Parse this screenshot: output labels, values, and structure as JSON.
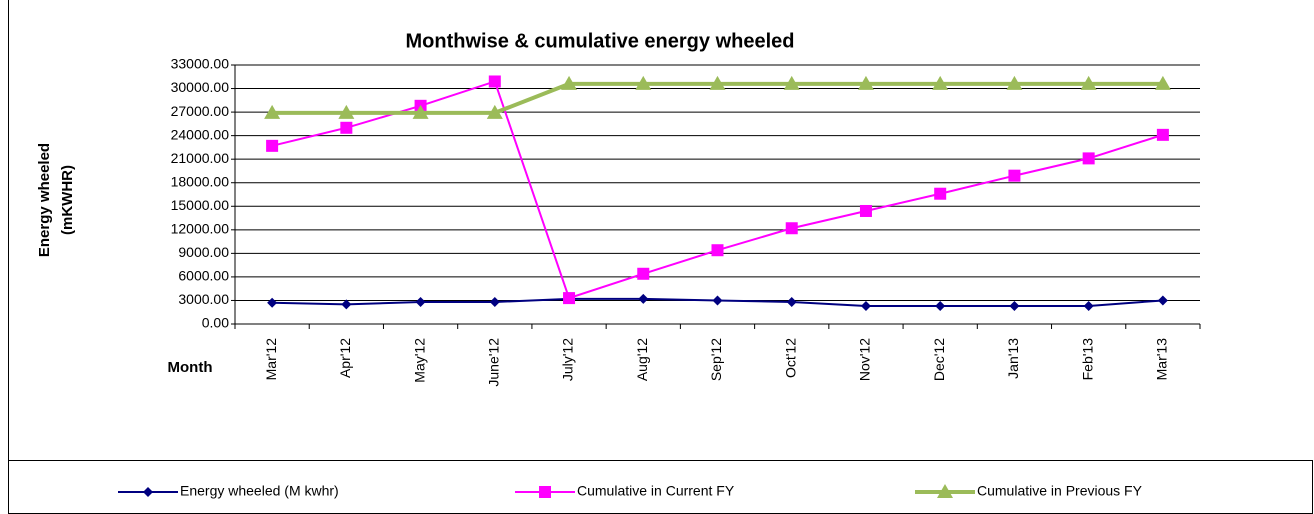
{
  "chart_data": {
    "type": "line",
    "title": "Monthwise & cumulative energy wheeled",
    "y_label": [
      "Energy wheeled",
      "(mKWHR)"
    ],
    "x_label": "Month",
    "categories": [
      "Mar'12",
      "Apr'12",
      "May'12",
      "June'12",
      "July'12",
      "Aug'12",
      "Sep'12",
      "Oct'12",
      "Nov'12",
      "Dec'12",
      "Jan'13",
      "Feb'13",
      "Mar'13"
    ],
    "series": [
      {
        "name": "Energy wheeled (M kwhr)",
        "color": "#000080",
        "marker": "diamond",
        "values": [
          2700,
          2500,
          2800,
          2800,
          3200,
          3200,
          3000,
          2800,
          2300,
          2300,
          2300,
          2300,
          3000
        ]
      },
      {
        "name": "Cumulative in Current FY",
        "color": "#ff00ff",
        "marker": "square",
        "values": [
          22700,
          25000,
          27800,
          30900,
          3300,
          6400,
          9400,
          12200,
          14400,
          16600,
          18900,
          21100,
          24100
        ]
      },
      {
        "name": "Cumulative in Previous FY",
        "color": "#9bbb59",
        "marker": "triangle",
        "values": [
          26900,
          26900,
          26900,
          26900,
          30600,
          30600,
          30600,
          30600,
          30600,
          30600,
          30600,
          30600,
          30600
        ]
      }
    ],
    "ylim": [
      0,
      33000
    ],
    "yticks": [
      {
        "value": 0,
        "label": "0.00"
      },
      {
        "value": 3000,
        "label": "3000.00"
      },
      {
        "value": 6000,
        "label": "6000.00"
      },
      {
        "value": 9000,
        "label": "9000.00"
      },
      {
        "value": 12000,
        "label": "12000.00"
      },
      {
        "value": 15000,
        "label": "15000.00"
      },
      {
        "value": 18000,
        "label": "18000.00"
      },
      {
        "value": 21000,
        "label": "21000.00"
      },
      {
        "value": 24000,
        "label": "24000.00"
      },
      {
        "value": 27000,
        "label": "27000.00"
      },
      {
        "value": 30000,
        "label": "30000.00"
      },
      {
        "value": 33000,
        "label": "33000.00"
      }
    ],
    "grid": true,
    "legend": "bottom"
  }
}
